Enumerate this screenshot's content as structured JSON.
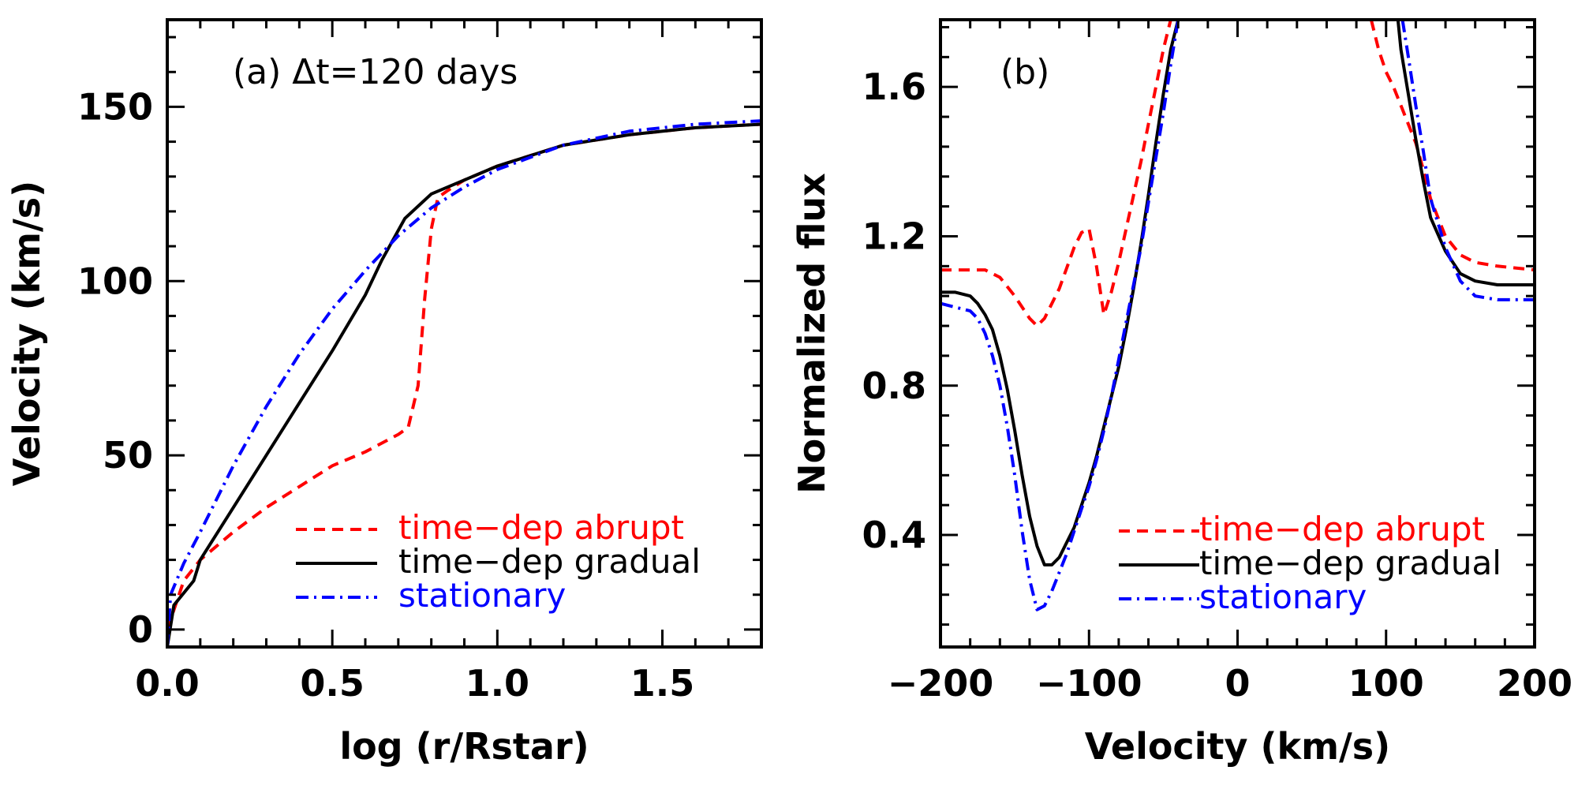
{
  "chart_data": [
    {
      "type": "line",
      "panel_label": "(a) Δt=120 days",
      "xlabel": "log (r/Rstar)",
      "ylabel": "Velocity (km/s)",
      "xlim": [
        0.0,
        1.8
      ],
      "ylim": [
        -5,
        175
      ],
      "xticks": [
        0.0,
        0.5,
        1.0,
        1.5
      ],
      "xtick_labels": [
        "0.0",
        "0.5",
        "1.0",
        "1.5"
      ],
      "yticks": [
        0,
        50,
        100,
        150
      ],
      "ytick_labels": [
        "0",
        "50",
        "100",
        "150"
      ],
      "grid": false,
      "legend_position": "bottom-right",
      "series": [
        {
          "name": "time−dep abrupt",
          "color": "#ff0000",
          "dash": "dashed",
          "x": [
            0.0,
            0.05,
            0.1,
            0.2,
            0.3,
            0.4,
            0.5,
            0.6,
            0.7,
            0.73,
            0.76,
            0.78,
            0.8,
            0.82,
            0.85,
            0.9,
            1.0,
            1.2,
            1.4,
            1.6,
            1.8
          ],
          "y": [
            0,
            14,
            20,
            28,
            35,
            41,
            47,
            51,
            56,
            58,
            70,
            95,
            115,
            124,
            126,
            129,
            133,
            139,
            142,
            144,
            145
          ]
        },
        {
          "name": "time−dep gradual",
          "color": "#000000",
          "dash": "solid",
          "x": [
            0.0,
            0.02,
            0.08,
            0.1,
            0.2,
            0.3,
            0.4,
            0.5,
            0.6,
            0.65,
            0.72,
            0.8,
            0.9,
            1.0,
            1.2,
            1.4,
            1.6,
            1.8
          ],
          "y": [
            -5,
            7,
            14,
            20,
            35,
            50,
            65,
            80,
            96,
            106,
            118,
            125,
            129,
            133,
            139,
            142,
            144,
            145
          ]
        },
        {
          "name": "stationary",
          "color": "#0000ff",
          "dash": "dashdot",
          "x": [
            0.0,
            0.01,
            0.05,
            0.1,
            0.2,
            0.3,
            0.4,
            0.5,
            0.6,
            0.7,
            0.8,
            0.9,
            1.0,
            1.2,
            1.4,
            1.6,
            1.8
          ],
          "y": [
            -5,
            10,
            19,
            28,
            47,
            64,
            79,
            92,
            103,
            113,
            121,
            127,
            132,
            139,
            143,
            145,
            146
          ]
        }
      ]
    },
    {
      "type": "line",
      "panel_label": "(b)",
      "xlabel": "Velocity (km/s)",
      "ylabel": "Normalized flux",
      "xlim": [
        -200,
        200
      ],
      "ylim": [
        0.1,
        1.78
      ],
      "xticks": [
        -200,
        -100,
        0,
        100,
        200
      ],
      "xtick_labels": [
        "−200",
        "−100",
        "0",
        "100",
        "200"
      ],
      "yticks": [
        0.4,
        0.8,
        1.2,
        1.6
      ],
      "ytick_labels": [
        "0.4",
        "0.8",
        "1.2",
        "1.6"
      ],
      "grid": false,
      "legend_position": "bottom-right",
      "series": [
        {
          "name": "time−dep abrupt",
          "color": "#ff0000",
          "dash": "dashed",
          "segments": [
            {
              "x": [
                -200,
                -180,
                -170,
                -160,
                -150,
                -140,
                -135,
                -130,
                -120,
                -110,
                -105,
                -100,
                -95,
                -90,
                -85,
                -80,
                -75,
                -70,
                -65,
                -60,
                -55,
                -50,
                -45,
                -42
              ],
              "y": [
                1.11,
                1.11,
                1.11,
                1.09,
                1.04,
                0.98,
                0.96,
                0.98,
                1.06,
                1.17,
                1.21,
                1.22,
                1.12,
                0.99,
                1.05,
                1.13,
                1.22,
                1.31,
                1.4,
                1.5,
                1.6,
                1.7,
                1.78,
                1.78
              ]
            },
            {
              "x": [
                90,
                95,
                100,
                105,
                110,
                115,
                120,
                125,
                130,
                140,
                150,
                160,
                175,
                200
              ],
              "y": [
                1.78,
                1.7,
                1.64,
                1.6,
                1.55,
                1.5,
                1.45,
                1.38,
                1.3,
                1.2,
                1.15,
                1.13,
                1.12,
                1.11
              ]
            }
          ]
        },
        {
          "name": "time−dep gradual",
          "color": "#000000",
          "dash": "solid",
          "segments": [
            {
              "x": [
                -200,
                -190,
                -180,
                -175,
                -170,
                -165,
                -160,
                -155,
                -150,
                -145,
                -140,
                -135,
                -130,
                -125,
                -120,
                -115,
                -110,
                -105,
                -100,
                -95,
                -90,
                -85,
                -80,
                -75,
                -70,
                -65,
                -60,
                -55,
                -50,
                -45,
                -40
              ],
              "y": [
                1.05,
                1.05,
                1.04,
                1.02,
                0.99,
                0.95,
                0.88,
                0.79,
                0.68,
                0.56,
                0.45,
                0.37,
                0.32,
                0.32,
                0.34,
                0.38,
                0.42,
                0.48,
                0.54,
                0.61,
                0.69,
                0.77,
                0.85,
                0.95,
                1.06,
                1.18,
                1.31,
                1.45,
                1.58,
                1.7,
                1.78
              ]
            },
            {
              "x": [
                108,
                110,
                115,
                120,
                125,
                130,
                140,
                150,
                160,
                175,
                200
              ],
              "y": [
                1.78,
                1.7,
                1.58,
                1.46,
                1.35,
                1.25,
                1.16,
                1.1,
                1.08,
                1.07,
                1.07
              ]
            }
          ]
        },
        {
          "name": "stationary",
          "color": "#0000ff",
          "dash": "dashdot",
          "segments": [
            {
              "x": [
                -200,
                -190,
                -180,
                -175,
                -170,
                -165,
                -160,
                -155,
                -150,
                -145,
                -140,
                -135,
                -130,
                -125,
                -120,
                -115,
                -110,
                -105,
                -100,
                -95,
                -90,
                -85,
                -80,
                -75,
                -70,
                -65,
                -60,
                -55,
                -50,
                -45,
                -40
              ],
              "y": [
                1.02,
                1.01,
                1.0,
                0.98,
                0.94,
                0.88,
                0.8,
                0.69,
                0.56,
                0.41,
                0.28,
                0.2,
                0.21,
                0.25,
                0.3,
                0.35,
                0.41,
                0.47,
                0.53,
                0.6,
                0.68,
                0.77,
                0.87,
                0.97,
                1.07,
                1.17,
                1.29,
                1.41,
                1.53,
                1.66,
                1.78
              ]
            },
            {
              "x": [
                111,
                115,
                120,
                125,
                130,
                140,
                150,
                160,
                175,
                200
              ],
              "y": [
                1.78,
                1.68,
                1.55,
                1.43,
                1.3,
                1.17,
                1.08,
                1.04,
                1.03,
                1.03
              ]
            }
          ]
        }
      ]
    }
  ]
}
